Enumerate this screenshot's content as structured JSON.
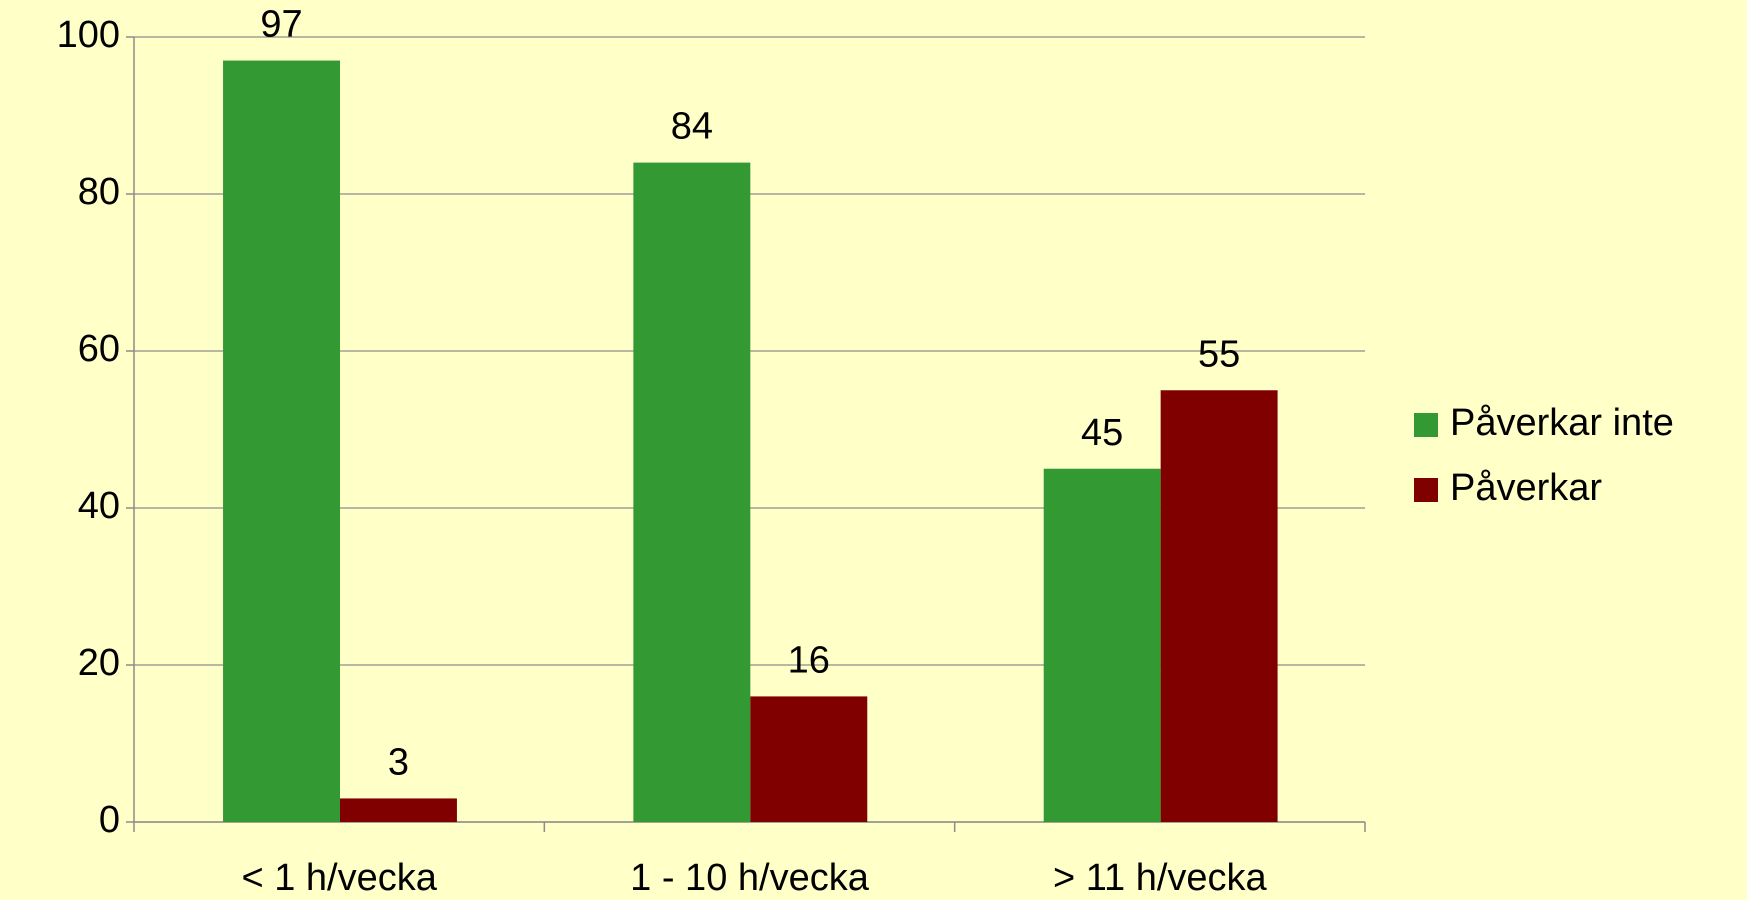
{
  "chart_data": {
    "type": "bar",
    "categories": [
      "< 1 h/vecka",
      "1 - 10 h/vecka",
      "> 11 h/vecka"
    ],
    "series": [
      {
        "name": "Påverkar inte",
        "color": "#339933",
        "values": [
          97,
          84,
          45
        ]
      },
      {
        "name": "Påverkar",
        "color": "#800000",
        "values": [
          3,
          16,
          55
        ]
      }
    ],
    "ylim": [
      0,
      100
    ],
    "yticks": [
      0,
      20,
      40,
      60,
      80,
      100
    ],
    "grid": true,
    "legend": "right"
  }
}
